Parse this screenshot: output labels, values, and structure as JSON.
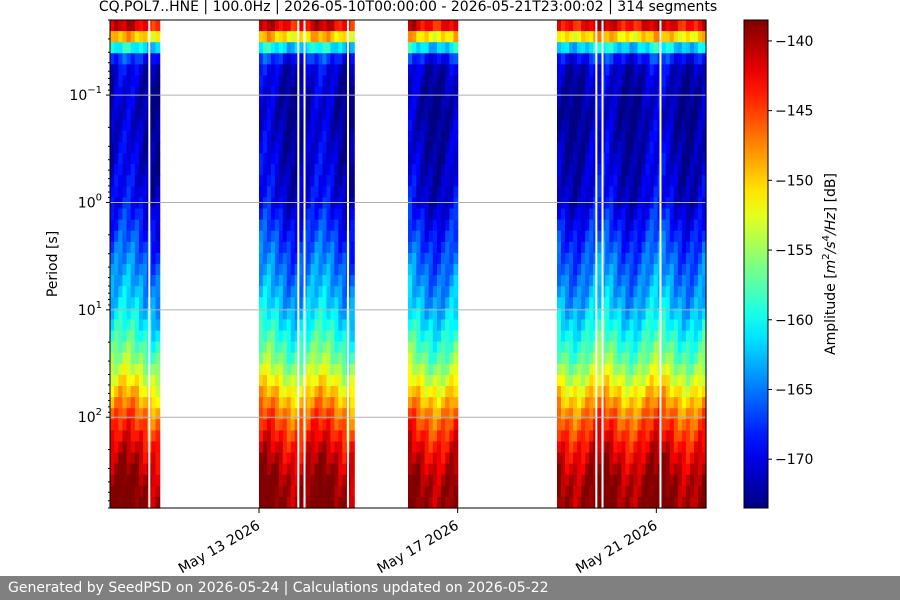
{
  "chart_data": {
    "type": "heatmap",
    "title": "CQ.POL7..HNE | 100.0Hz | 2026-05-10T00:00:00 - 2026-05-21T23:00:02 | 314 segments",
    "ylabel": "Period [s]",
    "yscale": "log",
    "yaxis_inverted": true,
    "ylim": [
      0.02,
      700
    ],
    "xlim": [
      "2026-05-10",
      "2026-05-22"
    ],
    "y_ticks": [
      {
        "value": 0.1,
        "base": "10",
        "exp": "−1"
      },
      {
        "value": 1,
        "base": "10",
        "exp": "0"
      },
      {
        "value": 10,
        "base": "10",
        "exp": "1"
      },
      {
        "value": 100,
        "base": "10",
        "exp": "2"
      }
    ],
    "x_ticks": [
      {
        "date": "2026-05-13",
        "label": "May 13 2026"
      },
      {
        "date": "2026-05-17",
        "label": "May 17 2026"
      },
      {
        "date": "2026-05-21",
        "label": "May 21 2026"
      }
    ],
    "grid": "horizontal",
    "colorbar": {
      "label": "Amplitude [m2/s4/Hz] [dB]",
      "label_parts": {
        "pre": "Amplitude [",
        "m": "m",
        "e1": "2",
        "s": "/s",
        "e2": "4",
        "hz": "/Hz",
        "post": "] [dB]"
      },
      "range": [
        -173.5,
        -138.5
      ],
      "ticks": [
        -140,
        -145,
        -150,
        -155,
        -160,
        -165,
        -170
      ],
      "tick_labels": [
        "−140",
        "−145",
        "−150",
        "−155",
        "−160",
        "−165",
        "−170"
      ],
      "colormap": "jet"
    },
    "data_blocks": [
      {
        "start": "2026-05-10T00:00",
        "end": "2026-05-11T00:00"
      },
      {
        "start": "2026-05-13T00:00",
        "end": "2026-05-14T22:00"
      },
      {
        "start": "2026-05-16T00:00",
        "end": "2026-05-17T00:00"
      },
      {
        "start": "2026-05-19T00:00",
        "end": "2026-05-22T00:00"
      }
    ],
    "gaps": [
      "2026-05-10T19:00",
      "2026-05-13T19:00",
      "2026-05-13T22:00",
      "2026-05-14T19:00",
      "2026-05-19T19:00",
      "2026-05-19T22:00",
      "2026-05-21T02:00"
    ],
    "amplitude_profile": [
      {
        "period": 0.02,
        "db": -139
      },
      {
        "period": 0.025,
        "db": -145
      },
      {
        "period": 0.03,
        "db": -152
      },
      {
        "period": 0.035,
        "db": -160
      },
      {
        "period": 0.045,
        "db": -168
      },
      {
        "period": 0.06,
        "db": -171
      },
      {
        "period": 0.15,
        "db": -172
      },
      {
        "period": 1,
        "db": -170
      },
      {
        "period": 3,
        "db": -166
      },
      {
        "period": 8,
        "db": -163
      },
      {
        "period": 15,
        "db": -160
      },
      {
        "period": 30,
        "db": -156
      },
      {
        "period": 60,
        "db": -150
      },
      {
        "period": 100,
        "db": -146
      },
      {
        "period": 200,
        "db": -142
      },
      {
        "period": 400,
        "db": -139
      },
      {
        "period": 700,
        "db": -138.5
      }
    ]
  },
  "footer": {
    "text": "Generated by SeedPSD on 2026-05-24 | Calculations updated on 2026-05-22"
  }
}
